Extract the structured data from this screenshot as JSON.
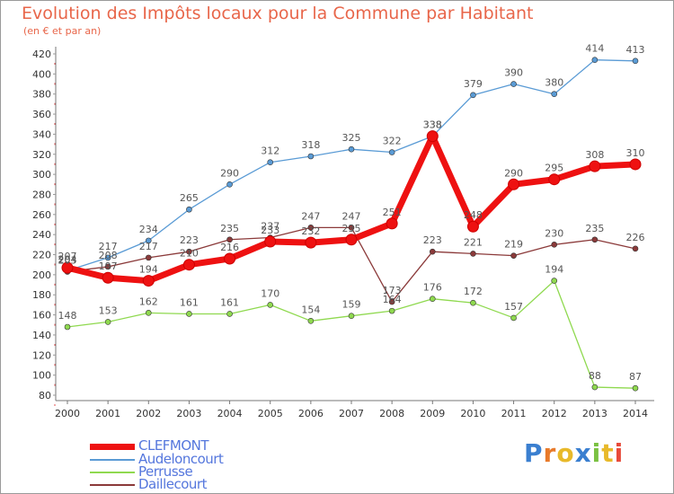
{
  "header": {
    "title": "Evolution des Impôts locaux pour la Commune par Habitant",
    "subtitle": "(en € et par an)"
  },
  "logo": {
    "text": "Proxiti",
    "letters": [
      "P",
      "r",
      "o",
      "x",
      "i",
      "t",
      "i"
    ]
  },
  "chart_data": {
    "type": "line",
    "x": [
      "2000",
      "2001",
      "2002",
      "2003",
      "2004",
      "2005",
      "2006",
      "2007",
      "2008",
      "2009",
      "2010",
      "2011",
      "2012",
      "2013",
      "2014"
    ],
    "ylim": [
      80,
      420
    ],
    "yticks": [
      80,
      100,
      120,
      140,
      160,
      180,
      200,
      220,
      240,
      260,
      280,
      300,
      320,
      340,
      360,
      380,
      400,
      420
    ],
    "grid": false,
    "legend_position": "bottom-left",
    "series": [
      {
        "name": "CLEFMONT",
        "color": "#ee1111",
        "values": [
          207,
          197,
          194,
          210,
          216,
          233,
          232,
          235,
          251,
          338,
          248,
          290,
          295,
          308,
          310
        ]
      },
      {
        "name": "Audeloncourt",
        "color": "#5a9bd5",
        "values": [
          204,
          217,
          234,
          265,
          290,
          312,
          318,
          325,
          322,
          338,
          379,
          390,
          380,
          414,
          413
        ]
      },
      {
        "name": "Perrusse",
        "color": "#8fd94f",
        "values": [
          148,
          153,
          162,
          161,
          161,
          170,
          154,
          159,
          164,
          176,
          172,
          157,
          194,
          88,
          87
        ]
      },
      {
        "name": "Daillecourt",
        "color": "#8b3a3a",
        "values": [
          203,
          208,
          217,
          223,
          235,
          237,
          247,
          247,
          173,
          223,
          221,
          219,
          230,
          235,
          226
        ]
      }
    ]
  },
  "colors": {
    "title": "#e8664a",
    "axis": "#777777",
    "tick_label": "#333333",
    "value_label": "#555555",
    "legend_label": "#5577dd"
  }
}
